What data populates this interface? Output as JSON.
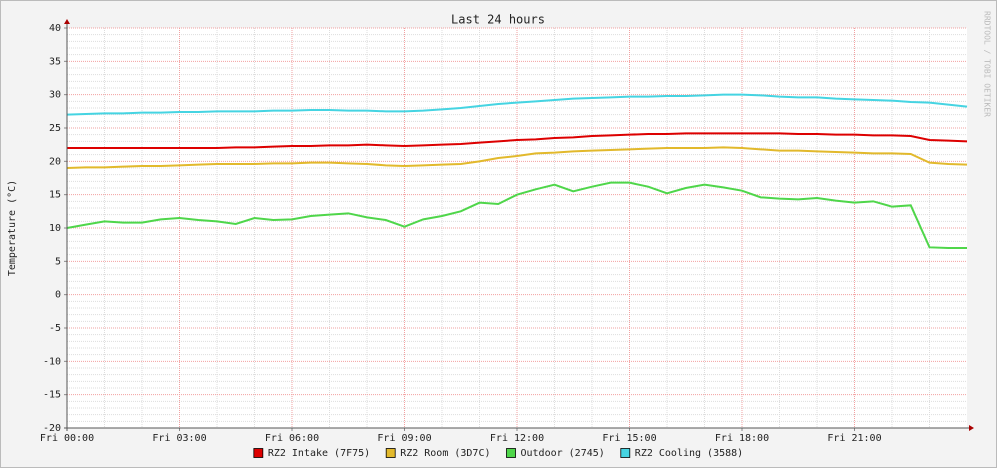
{
  "chart_data": {
    "type": "line",
    "title": "Last 24 hours",
    "y_label": "Temperature (°C)",
    "watermark": "RRDTOOL / TOBI OETIKER",
    "x": [
      0,
      0.5,
      1,
      1.5,
      2,
      2.5,
      3,
      3.5,
      4,
      4.5,
      5,
      5.5,
      6,
      6.5,
      7,
      7.5,
      8,
      8.5,
      9,
      9.5,
      10,
      10.5,
      11,
      11.5,
      12,
      12.5,
      13,
      13.5,
      14,
      14.5,
      15,
      15.5,
      16,
      16.5,
      17,
      17.5,
      18,
      18.5,
      19,
      19.5,
      20,
      20.5,
      21,
      21.5,
      22,
      22.5,
      23,
      23.5,
      24
    ],
    "xlim": [
      0,
      24
    ],
    "xticks": [
      {
        "value": 0,
        "label": "Fri 00:00"
      },
      {
        "value": 3,
        "label": "Fri 03:00"
      },
      {
        "value": 6,
        "label": "Fri 06:00"
      },
      {
        "value": 9,
        "label": "Fri 09:00"
      },
      {
        "value": 12,
        "label": "Fri 12:00"
      },
      {
        "value": 15,
        "label": "Fri 15:00"
      },
      {
        "value": 18,
        "label": "Fri 18:00"
      },
      {
        "value": 21,
        "label": "Fri 21:00"
      }
    ],
    "ylim": [
      -20,
      40
    ],
    "yticks": [
      -20,
      -15,
      -10,
      -5,
      0,
      5,
      10,
      15,
      20,
      25,
      30,
      35,
      40
    ],
    "grid": true,
    "legend": "bottom",
    "series": [
      {
        "name": "RZ2 Intake (7F75)",
        "color": "#dd0000",
        "values": [
          22,
          22,
          22,
          22,
          22,
          22,
          22,
          22,
          22,
          22.1,
          22.1,
          22.2,
          22.3,
          22.3,
          22.4,
          22.4,
          22.5,
          22.4,
          22.3,
          22.4,
          22.5,
          22.6,
          22.8,
          23,
          23.2,
          23.3,
          23.5,
          23.6,
          23.8,
          23.9,
          24,
          24.1,
          24.1,
          24.2,
          24.2,
          24.2,
          24.2,
          24.2,
          24.2,
          24.1,
          24.1,
          24,
          24,
          23.9,
          23.9,
          23.8,
          23.2,
          23.1,
          23
        ]
      },
      {
        "name": "RZ2 Room (3D7C)",
        "color": "#e2b92c",
        "values": [
          19,
          19.1,
          19.1,
          19.2,
          19.3,
          19.3,
          19.4,
          19.5,
          19.6,
          19.6,
          19.6,
          19.7,
          19.7,
          19.8,
          19.8,
          19.7,
          19.6,
          19.4,
          19.3,
          19.4,
          19.5,
          19.6,
          20,
          20.5,
          20.8,
          21.2,
          21.3,
          21.5,
          21.6,
          21.7,
          21.8,
          21.9,
          22,
          22,
          22,
          22.1,
          22,
          21.8,
          21.6,
          21.6,
          21.5,
          21.4,
          21.3,
          21.2,
          21.2,
          21.1,
          19.8,
          19.6,
          19.5
        ]
      },
      {
        "name": "Outdoor (2745)",
        "color": "#4fd64a",
        "values": [
          10,
          10.5,
          11,
          10.8,
          10.8,
          11.3,
          11.5,
          11.2,
          11,
          10.6,
          11.5,
          11.2,
          11.3,
          11.8,
          12,
          12.2,
          11.6,
          11.2,
          10.2,
          11.3,
          11.8,
          12.5,
          13.8,
          13.6,
          15,
          15.8,
          16.5,
          15.5,
          16.2,
          16.8,
          16.8,
          16.2,
          15.2,
          16,
          16.5,
          16.1,
          15.6,
          14.6,
          14.4,
          14.3,
          14.5,
          14.1,
          13.8,
          14,
          13.2,
          13.4,
          7.1,
          7,
          7
        ]
      },
      {
        "name": "RZ2 Cooling (3588)",
        "color": "#45d4e2",
        "values": [
          27,
          27.1,
          27.2,
          27.2,
          27.3,
          27.3,
          27.4,
          27.4,
          27.5,
          27.5,
          27.5,
          27.6,
          27.6,
          27.7,
          27.7,
          27.6,
          27.6,
          27.5,
          27.5,
          27.6,
          27.8,
          28,
          28.3,
          28.6,
          28.8,
          29,
          29.2,
          29.4,
          29.5,
          29.6,
          29.7,
          29.7,
          29.8,
          29.8,
          29.9,
          30,
          30,
          29.9,
          29.7,
          29.6,
          29.6,
          29.4,
          29.3,
          29.2,
          29.1,
          28.9,
          28.8,
          28.5,
          28.2
        ]
      }
    ]
  }
}
